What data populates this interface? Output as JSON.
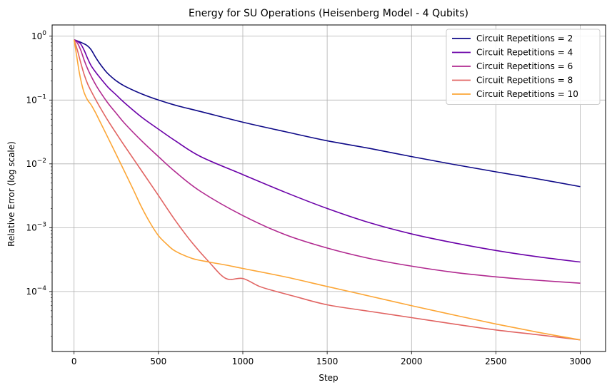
{
  "chart_data": {
    "type": "line",
    "title": "Energy for SU Operations (Heisenberg Model - 4 Qubits)",
    "xlabel": "Step",
    "ylabel": "Relative Error (log scale)",
    "yscale": "log",
    "xlim": [
      -130,
      3150
    ],
    "ylim": [
      1.15e-05,
      1.5
    ],
    "xticks": [
      0,
      500,
      1000,
      1500,
      2000,
      2500,
      3000
    ],
    "xtick_labels": [
      "0",
      "500",
      "1000",
      "1500",
      "2000",
      "2500",
      "3000"
    ],
    "yticks": [
      0.0001,
      0.001,
      0.01,
      0.1,
      1
    ],
    "ytick_labels": [
      [
        "10",
        "−4"
      ],
      [
        "10",
        "−3"
      ],
      [
        "10",
        "−2"
      ],
      [
        "10",
        "−1"
      ],
      [
        "10",
        "0"
      ]
    ],
    "grid": true,
    "legend_position": "top-right",
    "series": [
      {
        "name": "Circuit Repetitions = 2",
        "color": "#0d0887",
        "x": [
          0,
          25,
          50,
          75,
          100,
          125,
          150,
          175,
          200,
          250,
          300,
          400,
          500,
          600,
          750,
          1000,
          1250,
          1500,
          1750,
          2000,
          2250,
          2500,
          2750,
          3000
        ],
        "y": [
          0.88,
          0.83,
          0.78,
          0.72,
          0.62,
          0.48,
          0.38,
          0.31,
          0.26,
          0.2,
          0.165,
          0.125,
          0.1,
          0.083,
          0.066,
          0.045,
          0.032,
          0.023,
          0.0175,
          0.013,
          0.0098,
          0.0075,
          0.0058,
          0.0044
        ]
      },
      {
        "name": "Circuit Repetitions = 4",
        "color": "#6a00a8",
        "x": [
          0,
          20,
          40,
          60,
          80,
          100,
          125,
          150,
          200,
          250,
          300,
          400,
          500,
          600,
          750,
          1000,
          1250,
          1500,
          1750,
          2000,
          2250,
          2500,
          2750,
          3000
        ],
        "y": [
          0.88,
          0.83,
          0.75,
          0.6,
          0.45,
          0.35,
          0.28,
          0.23,
          0.16,
          0.12,
          0.09,
          0.054,
          0.035,
          0.023,
          0.013,
          0.0068,
          0.0036,
          0.002,
          0.0012,
          0.0008,
          0.00058,
          0.00044,
          0.00035,
          0.00029
        ]
      },
      {
        "name": "Circuit Repetitions = 6",
        "color": "#b12a90",
        "x": [
          0,
          20,
          40,
          60,
          80,
          100,
          125,
          150,
          200,
          250,
          300,
          400,
          500,
          600,
          750,
          1000,
          1250,
          1500,
          1750,
          2000,
          2250,
          2500,
          2750,
          3000
        ],
        "y": [
          0.88,
          0.78,
          0.6,
          0.42,
          0.31,
          0.24,
          0.18,
          0.14,
          0.09,
          0.062,
          0.043,
          0.023,
          0.013,
          0.0075,
          0.0037,
          0.00155,
          0.00078,
          0.00048,
          0.00033,
          0.00025,
          0.0002,
          0.00017,
          0.00015,
          0.000135
        ]
      },
      {
        "name": "Circuit Repetitions = 8",
        "color": "#e16462",
        "x": [
          0,
          20,
          40,
          60,
          80,
          100,
          125,
          150,
          200,
          250,
          300,
          400,
          500,
          600,
          700,
          800,
          900,
          1000,
          1100,
          1200,
          1300,
          1500,
          1750,
          2000,
          2250,
          2500,
          2750,
          3000
        ],
        "y": [
          0.88,
          0.6,
          0.38,
          0.25,
          0.18,
          0.14,
          0.105,
          0.08,
          0.048,
          0.03,
          0.019,
          0.0078,
          0.0032,
          0.0013,
          0.00058,
          0.00029,
          0.00016,
          0.00016,
          0.00012,
          0.0001,
          8.5e-05,
          6.2e-05,
          4.9e-05,
          3.9e-05,
          3.1e-05,
          2.5e-05,
          2.1e-05,
          1.75e-05
        ]
      },
      {
        "name": "Circuit Repetitions = 10",
        "color": "#fca636",
        "x": [
          0,
          15,
          30,
          45,
          60,
          80,
          100,
          125,
          150,
          200,
          250,
          300,
          350,
          400,
          450,
          500,
          550,
          600,
          700,
          800,
          900,
          1000,
          1250,
          1500,
          1750,
          2000,
          2250,
          2500,
          2750,
          3000
        ],
        "y": [
          0.88,
          0.5,
          0.28,
          0.18,
          0.13,
          0.1,
          0.085,
          0.065,
          0.048,
          0.026,
          0.014,
          0.0075,
          0.004,
          0.0021,
          0.0012,
          0.00075,
          0.00055,
          0.00043,
          0.00033,
          0.00029,
          0.00026,
          0.00023,
          0.00017,
          0.00012,
          8.5e-05,
          6e-05,
          4.3e-05,
          3.1e-05,
          2.3e-05,
          1.75e-05
        ]
      }
    ]
  }
}
